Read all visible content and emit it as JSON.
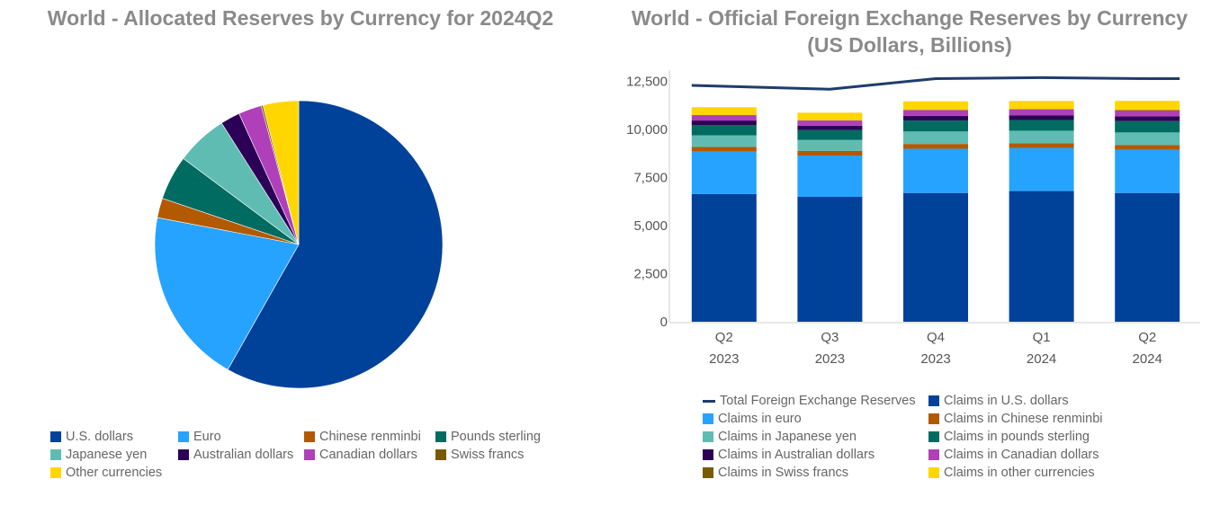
{
  "chart_data": [
    {
      "type": "pie",
      "title": "World - Allocated Reserves by Currency for 2024Q2",
      "legend_placement": "bottom",
      "slices": [
        {
          "label": "U.S. dollars",
          "value": 58.2,
          "color": "#00419A"
        },
        {
          "label": "Euro",
          "value": 19.8,
          "color": "#26A3FF"
        },
        {
          "label": "Chinese renminbi",
          "value": 2.2,
          "color": "#B35900"
        },
        {
          "label": "Pounds sterling",
          "value": 5.0,
          "color": "#006B60"
        },
        {
          "label": "Japanese yen",
          "value": 5.8,
          "color": "#5FBCB3"
        },
        {
          "label": "Australian dollars",
          "value": 2.2,
          "color": "#2C0056"
        },
        {
          "label": "Canadian dollars",
          "value": 2.6,
          "color": "#B03FBA"
        },
        {
          "label": "Swiss francs",
          "value": 0.2,
          "color": "#7A5A00"
        },
        {
          "label": "Other currencies",
          "value": 4.0,
          "color": "#FFD600"
        }
      ]
    },
    {
      "type": "bar",
      "stacked": true,
      "title": "World - Official Foreign Exchange Reserves by Currency",
      "subtitle": "(US Dollars, Billions)",
      "categories": [
        {
          "top": "Q2",
          "bottom": "2023"
        },
        {
          "top": "Q3",
          "bottom": "2023"
        },
        {
          "top": "Q4",
          "bottom": "2023"
        },
        {
          "top": "Q1",
          "bottom": "2024"
        },
        {
          "top": "Q2",
          "bottom": "2024"
        }
      ],
      "ylim": [
        0,
        13000
      ],
      "yticks": [
        0,
        2500,
        5000,
        7500,
        10000,
        12500
      ],
      "ytick_labels": [
        "0",
        "2,500",
        "5,000",
        "7,500",
        "10,000",
        "12,500"
      ],
      "grid": false,
      "legend_placement": "bottom",
      "series": [
        {
          "name": "Claims in U.S. dollars",
          "color": "#00419A",
          "values": [
            6650,
            6500,
            6700,
            6800,
            6700
          ]
        },
        {
          "name": "Claims in euro",
          "color": "#26A3FF",
          "values": [
            2200,
            2150,
            2300,
            2250,
            2250
          ]
        },
        {
          "name": "Claims in Chinese renminbi",
          "color": "#B35900",
          "values": [
            250,
            240,
            250,
            240,
            250
          ]
        },
        {
          "name": "Claims in Japanese yen",
          "color": "#5FBCB3",
          "values": [
            600,
            570,
            650,
            650,
            650
          ]
        },
        {
          "name": "Claims in pounds sterling",
          "color": "#006B60",
          "values": [
            540,
            520,
            570,
            560,
            590
          ]
        },
        {
          "name": "Claims in Australian dollars",
          "color": "#2C0056",
          "values": [
            230,
            225,
            245,
            245,
            250
          ]
        },
        {
          "name": "Claims in Canadian dollars",
          "color": "#B03FBA",
          "values": [
            270,
            260,
            290,
            300,
            300
          ]
        },
        {
          "name": "Claims in Swiss francs",
          "color": "#7A5A00",
          "values": [
            22,
            22,
            23,
            22,
            22
          ]
        },
        {
          "name": "Claims in other currencies",
          "color": "#FFD600",
          "values": [
            400,
            390,
            440,
            420,
            480
          ]
        }
      ],
      "line": {
        "name": "Total Foreign Exchange Reserves",
        "color": "#1F3C6B",
        "values": [
          12300,
          12100,
          12650,
          12700,
          12650
        ]
      }
    }
  ]
}
